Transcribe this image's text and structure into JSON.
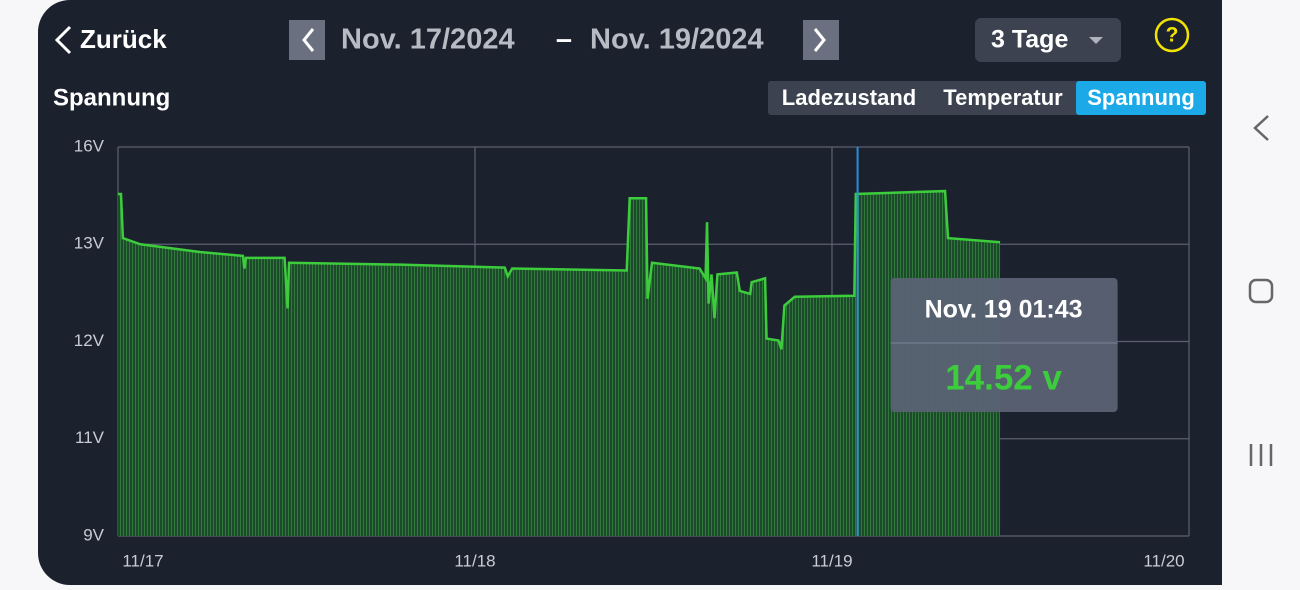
{
  "header": {
    "back": "Zurück",
    "date_from": "Nov. 17/2024",
    "date_separator": "–",
    "date_to": "Nov. 19/2024",
    "range": "3 Tage",
    "help": "?"
  },
  "tabs": [
    "Ladezustand",
    "Temperatur",
    "Spannung"
  ],
  "active_tab": 2,
  "chart_data": {
    "type": "line",
    "title": "Spannung",
    "color": "#3ccc3c",
    "fill": true,
    "grid": true,
    "x": [
      0,
      0.2,
      0.33,
      1.5,
      5.5,
      8.4,
      8.5,
      8.6,
      11.2,
      11.4,
      11.5,
      19,
      26,
      26.2,
      26.5,
      34.2,
      34.4,
      35.5,
      35.6,
      35.9,
      39.1,
      39.5,
      39.6,
      39.7,
      39.9,
      40.1,
      40.3,
      41.6,
      41.8,
      42.5,
      42.6,
      43.5,
      43.6,
      44.4,
      44.6,
      44.8,
      45.5,
      49.5,
      49.6,
      55.6,
      55.8,
      59.3
    ],
    "values": [
      14.55,
      14.55,
      13.19,
      13.0,
      12.92,
      12.88,
      12.75,
      12.86,
      12.86,
      12.34,
      12.81,
      12.79,
      12.76,
      12.67,
      12.75,
      12.73,
      14.42,
      14.42,
      12.44,
      12.81,
      12.75,
      12.65,
      13.68,
      12.39,
      12.69,
      12.24,
      12.69,
      12.71,
      12.52,
      12.49,
      12.61,
      12.65,
      12.03,
      12.01,
      11.92,
      12.37,
      12.46,
      12.47,
      14.55,
      14.64,
      13.19,
      13.06
    ],
    "xlim": [
      0,
      72
    ],
    "xticks": [
      {
        "value": 0,
        "label": "11/17"
      },
      {
        "value": 24,
        "label": "11/18"
      },
      {
        "value": 48,
        "label": "11/19"
      },
      {
        "value": 72,
        "label": "11/20"
      }
    ],
    "ylim": [
      9,
      16
    ],
    "yticks": [
      {
        "value": 9,
        "label": "9V"
      },
      {
        "value": 11,
        "label": "11V"
      },
      {
        "value": 12,
        "label": "12V"
      },
      {
        "value": 13,
        "label": "13V"
      },
      {
        "value": 16,
        "label": "16V"
      }
    ],
    "tooltip": {
      "x": 49.72,
      "title": "Nov. 19 01:43",
      "value": 14.52,
      "value_label": "14.52 v"
    }
  }
}
